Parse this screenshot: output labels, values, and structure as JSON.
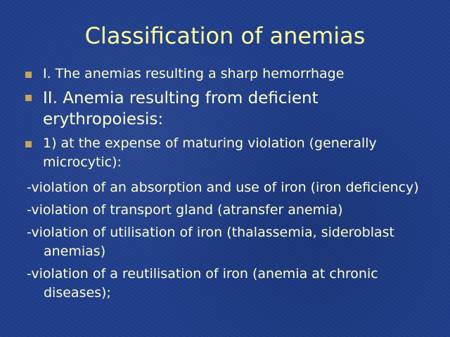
{
  "title": "Classification of anemias",
  "bullets": [
    "I. The anemias resulting a sharp hemorrhage",
    "II. Anemia resulting from deficient erythropoiesis:",
    "1) at the expense of maturing violation (generally microcytic):"
  ],
  "lines": [
    "-violation of an absorption and use of iron (iron deficiency)",
    "-violation of transport gland (atransfer anemia)",
    "-violation of utilisation of iron (thalassemia, sideroblast anemias)",
    "-violation of a reutilisation of iron (anemia at chronic diseases);"
  ]
}
